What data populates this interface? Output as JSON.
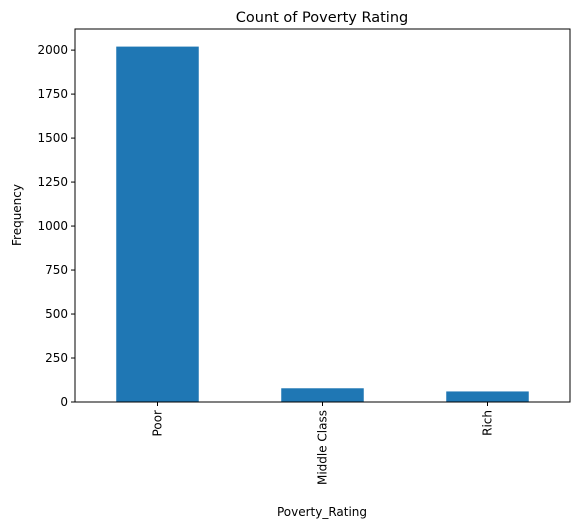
{
  "chart_data": {
    "type": "bar",
    "title": "Count of Poverty Rating",
    "xlabel": "Poverty_Rating",
    "ylabel": "Frequency",
    "categories": [
      "Poor",
      "Middle Class",
      "Rich"
    ],
    "values": [
      2020,
      78,
      60
    ],
    "ylim": [
      0,
      2120
    ],
    "yticks": [
      0,
      250,
      500,
      750,
      1000,
      1250,
      1500,
      1750,
      2000
    ],
    "xtick_rotation": "vertical",
    "grid": false,
    "legend": "none",
    "bar_color": "#1f77b4"
  }
}
